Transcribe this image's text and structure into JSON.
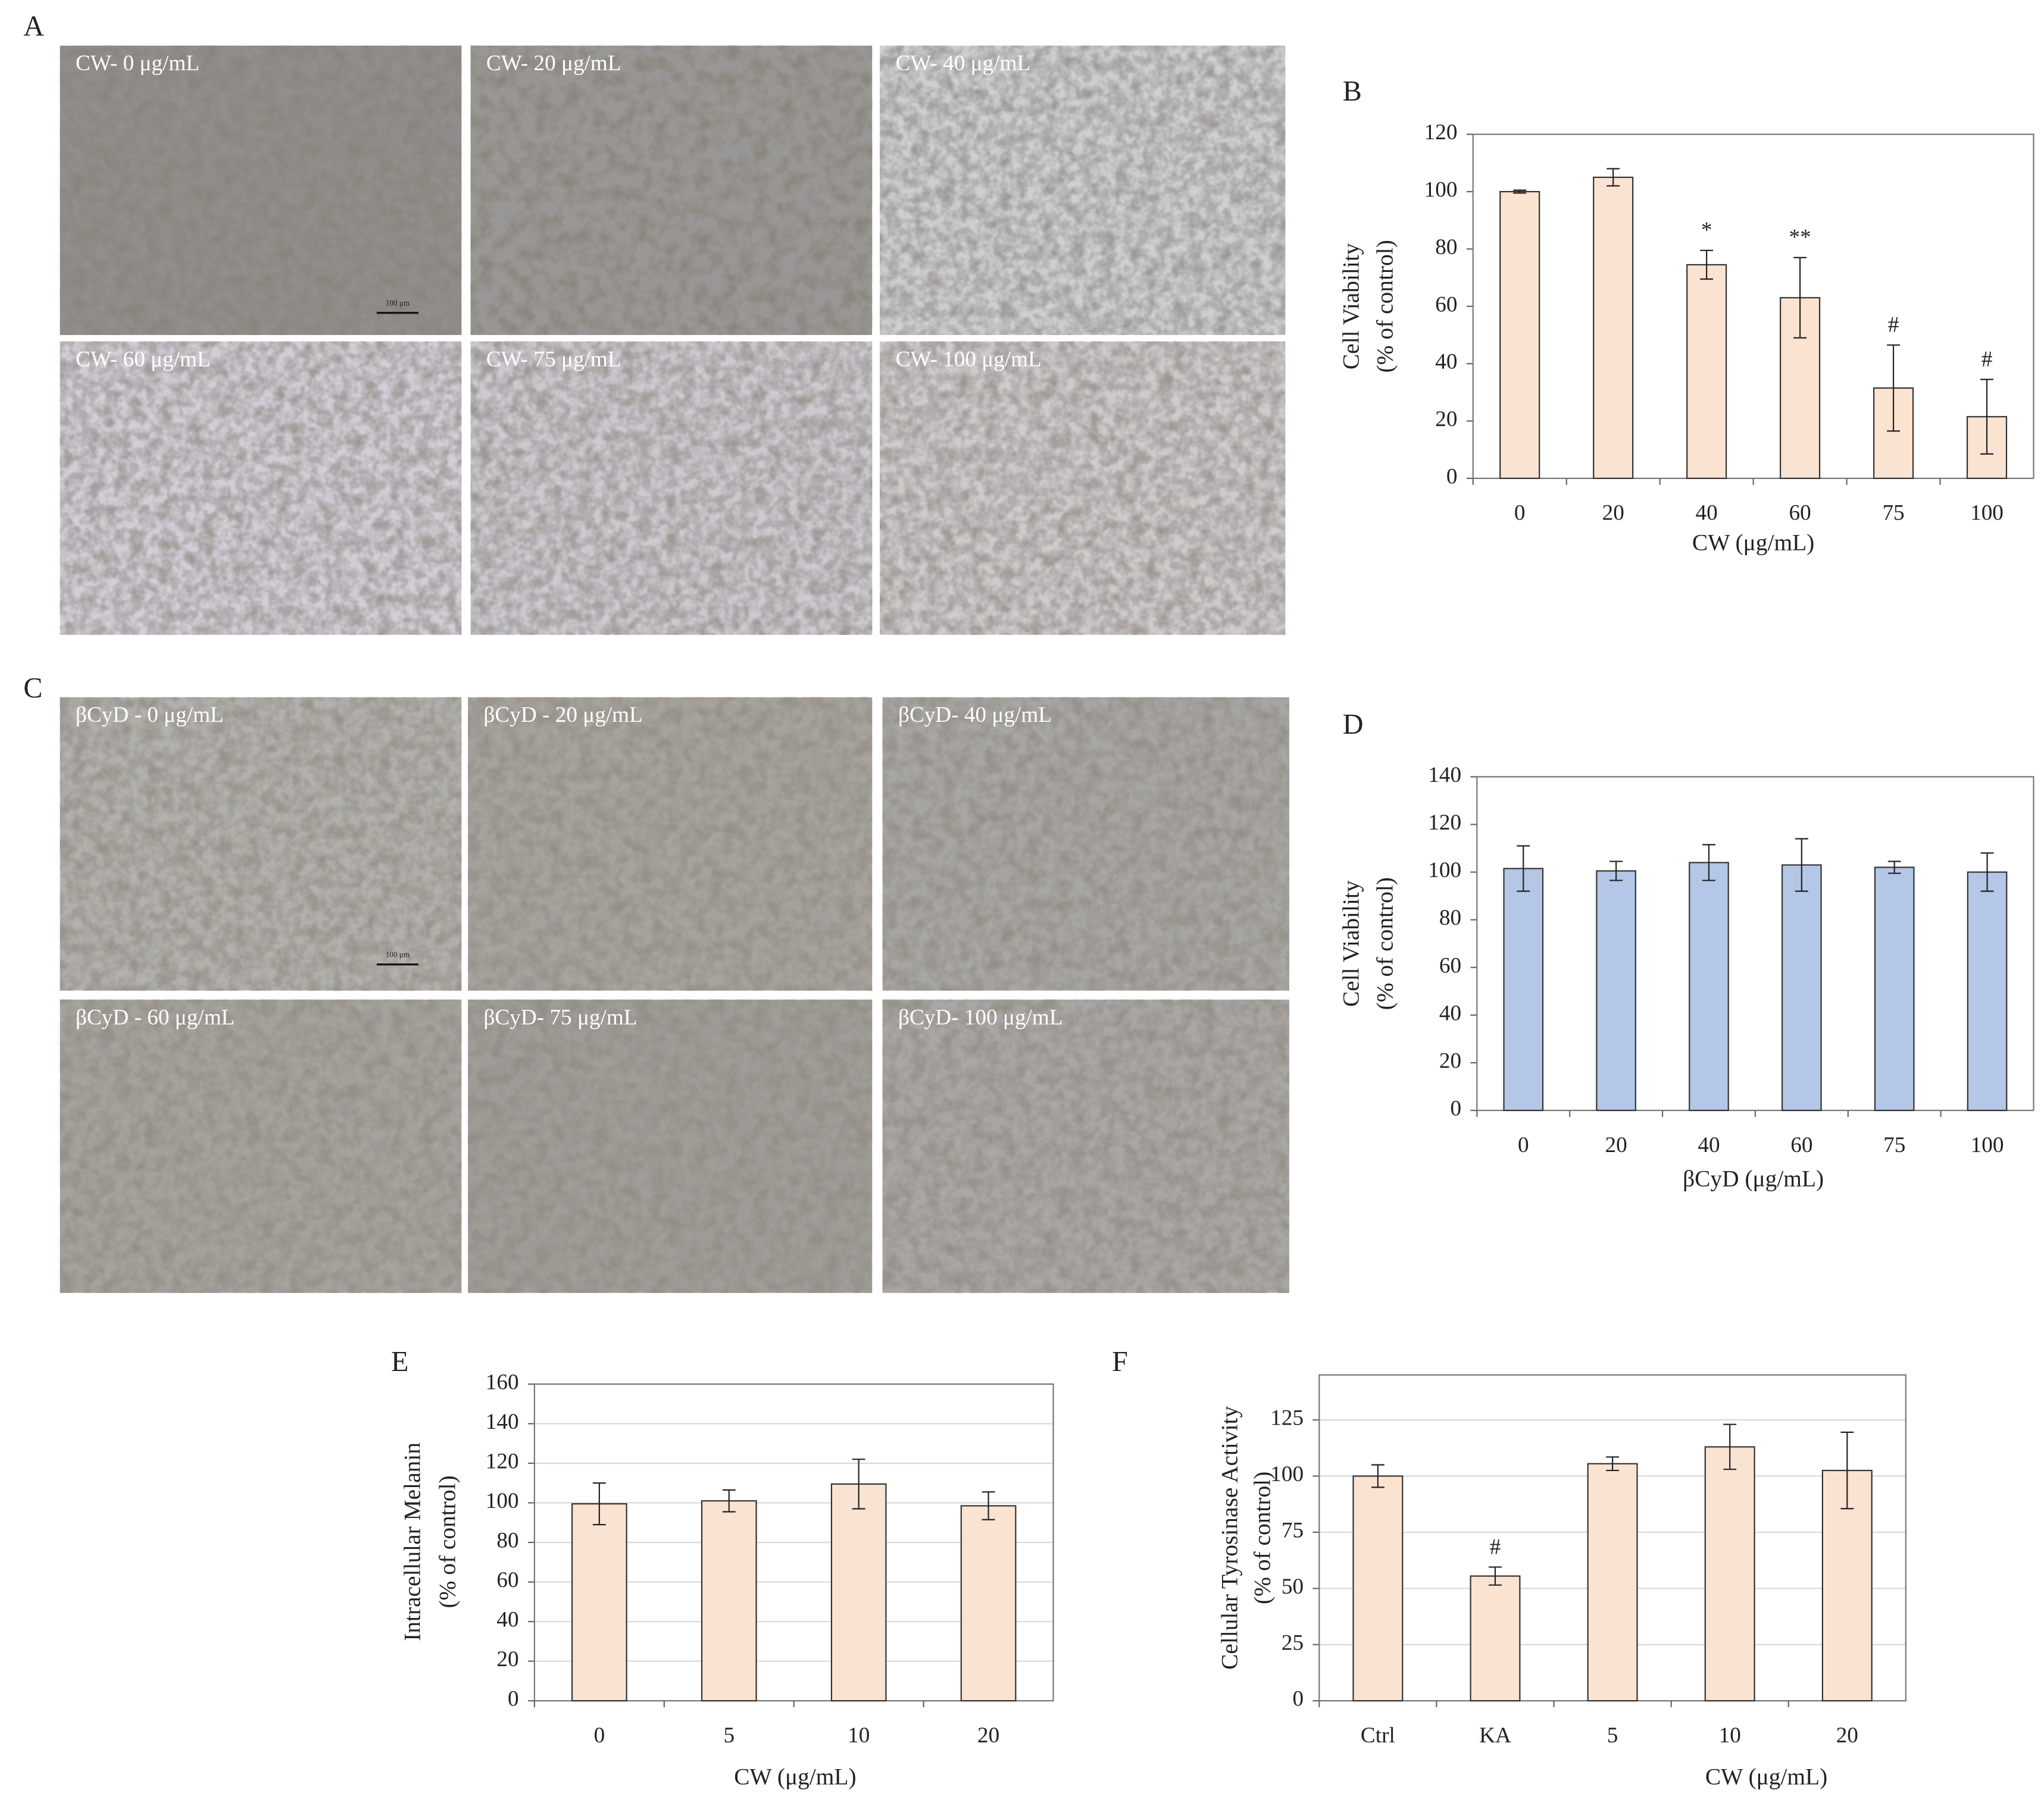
{
  "panels": {
    "A": {
      "label": "A",
      "scale_bar": "100 μm",
      "images": [
        "CW- 0 μg/mL",
        "CW- 20 μg/mL",
        "CW- 40 μg/mL",
        "CW- 60 μg/mL",
        "CW- 75 μg/mL",
        "CW- 100 μg/mL"
      ]
    },
    "C": {
      "label": "C",
      "scale_bar": "100 μm",
      "images": [
        "βCyD - 0 μg/mL",
        "βCyD - 20 μg/mL",
        "βCyD- 40 μg/mL",
        "βCyD - 60 μg/mL",
        "βCyD- 75 μg/mL",
        "βCyD- 100 μg/mL"
      ]
    }
  },
  "chart_data": [
    {
      "type": "bar",
      "title": "B",
      "ylabel": [
        "Cell Viability",
        "(% of control)"
      ],
      "xlabel": "CW  (μg/mL)",
      "categories": [
        "0",
        "20",
        "40",
        "60",
        "75",
        "100"
      ],
      "values": [
        100,
        105,
        74.5,
        63,
        31.5,
        21.5
      ],
      "errors": [
        0.5,
        3,
        5,
        14,
        15,
        13
      ],
      "annotations": [
        null,
        null,
        "*",
        "**",
        "#",
        "#"
      ],
      "color": "#fbe3d2",
      "ylim": [
        0,
        120
      ],
      "yticks": [
        0,
        20,
        40,
        60,
        80,
        100,
        120
      ],
      "grid": false
    },
    {
      "type": "bar",
      "title": "D",
      "ylabel": [
        "Cell Viability",
        "(% of control)"
      ],
      "xlabel": "βCyD  (μg/mL)",
      "categories": [
        "0",
        "20",
        "40",
        "60",
        "75",
        "100"
      ],
      "values": [
        101.5,
        100.5,
        104,
        103,
        102,
        100
      ],
      "errors": [
        9.5,
        4,
        7.5,
        11,
        2.5,
        8
      ],
      "color": "#b4c7e7",
      "ylim": [
        0,
        140
      ],
      "yticks": [
        0,
        20,
        40,
        60,
        80,
        100,
        120,
        140
      ],
      "grid": false
    },
    {
      "type": "bar",
      "title": "E",
      "ylabel": [
        "Intracellular  Melanin",
        "(% of control)"
      ],
      "xlabel": "CW (μg/mL)",
      "categories": [
        "0",
        "5",
        "10",
        "20"
      ],
      "values": [
        99.5,
        101,
        109.5,
        98.5
      ],
      "errors": [
        10.5,
        5.5,
        12.5,
        7
      ],
      "color": "#fbe3d2",
      "ylim": [
        0,
        160
      ],
      "yticks": [
        0,
        20,
        40,
        60,
        80,
        100,
        120,
        140,
        160
      ],
      "grid": true
    },
    {
      "type": "bar",
      "title": "F",
      "ylabel": [
        "Cellular Tyrosinase Activity",
        "(% of control)"
      ],
      "xlabel": "CW (μg/mL)",
      "categories": [
        "Ctrl",
        "KA",
        "5",
        "10",
        "20"
      ],
      "values": [
        100,
        55.5,
        105.5,
        113,
        102.5
      ],
      "errors": [
        5,
        4,
        3,
        10,
        17
      ],
      "annotations": [
        null,
        "#",
        null,
        null,
        null
      ],
      "color": "#fbe3d2",
      "ylim": [
        0,
        145
      ],
      "yticks": [
        0,
        25,
        50,
        75,
        100,
        125
      ],
      "grid": true
    }
  ]
}
